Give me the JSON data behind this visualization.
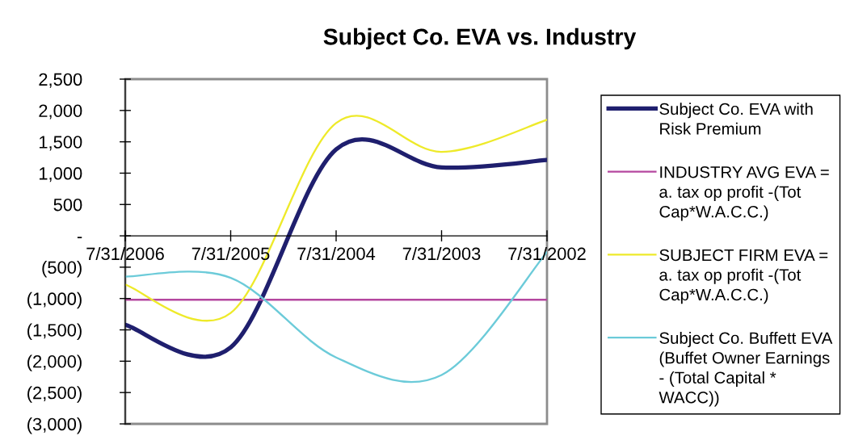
{
  "chart_data": {
    "type": "line",
    "title": "Subject Co. EVA vs. Industry",
    "categories": [
      "7/31/2006",
      "7/31/2005",
      "7/31/2004",
      "7/31/2003",
      "7/31/2002"
    ],
    "series": [
      {
        "name": "Subject Co. EVA with\nRisk Premium",
        "color": "#1f1f6e",
        "values": [
          -1420,
          -1780,
          1380,
          1090,
          1210
        ]
      },
      {
        "name": "INDUSTRY AVG EVA =\na. tax op profit -(Tot\nCap*W.A.C.C.)",
        "color": "#b5479f",
        "values": [
          -1020,
          -1020,
          -1020,
          -1020,
          -1020
        ]
      },
      {
        "name": "SUBJECT FIRM EVA =\na. tax op profit -(Tot\nCap*W.A.C.C.)",
        "color": "#eeea2a",
        "values": [
          -780,
          -1230,
          1800,
          1340,
          1850
        ]
      },
      {
        "name": "Subject Co. Buffett EVA\n(Buffet Owner Earnings\n- (Total Capital *\nWACC))",
        "color": "#6ccbd9",
        "values": [
          -650,
          -670,
          -1940,
          -2220,
          -260
        ]
      }
    ],
    "ylim": [
      -3000,
      2500
    ],
    "yticks": [
      {
        "value": 2500,
        "label": "2,500"
      },
      {
        "value": 2000,
        "label": "2,000"
      },
      {
        "value": 1500,
        "label": "1,500"
      },
      {
        "value": 1000,
        "label": "1,000"
      },
      500,
      {
        "value": 0,
        "label": "-"
      },
      {
        "value": -500,
        "label": "(500)"
      },
      {
        "value": -1000,
        "label": "(1,000)"
      },
      {
        "value": -1500,
        "label": "(1,500)"
      },
      {
        "value": -2000,
        "label": "(2,000)"
      },
      {
        "value": -2500,
        "label": "(2,500)"
      },
      {
        "value": -3000,
        "label": "(3,000)"
      }
    ],
    "legend": "right"
  }
}
